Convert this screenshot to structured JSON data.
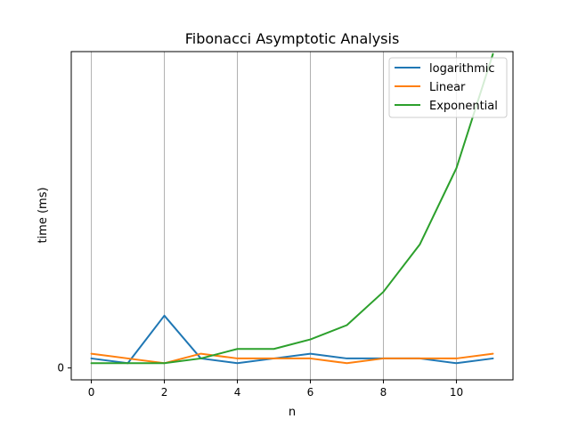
{
  "chart_data": {
    "type": "line",
    "title": "Fibonacci Asymptotic Analysis",
    "xlabel": "n",
    "ylabel": "time (ms)",
    "x": [
      0,
      1,
      2,
      3,
      4,
      5,
      6,
      7,
      8,
      9,
      10,
      11
    ],
    "xlim": [
      -0.55,
      11.55
    ],
    "ylim": [
      -0.0025,
      0.0665
    ],
    "x_ticks": [
      0,
      2,
      4,
      6,
      8,
      10
    ],
    "y_ticks": [
      0
    ],
    "x_tick_labels": [
      "0",
      "2",
      "4",
      "6",
      "8",
      "10"
    ],
    "y_tick_labels": [
      "0"
    ],
    "grid": "x-axis only",
    "legend_position": "top-right",
    "series": [
      {
        "name": "logarithmic",
        "color": "#1f77b4",
        "values": [
          0.002,
          0.001,
          0.011,
          0.002,
          0.001,
          0.002,
          0.003,
          0.002,
          0.002,
          0.002,
          0.001,
          0.002
        ]
      },
      {
        "name": "Linear",
        "color": "#ff7f0e",
        "values": [
          0.003,
          0.002,
          0.001,
          0.003,
          0.002,
          0.002,
          0.002,
          0.001,
          0.002,
          0.002,
          0.002,
          0.003
        ]
      },
      {
        "name": "Exponential",
        "color": "#2ca02c",
        "values": [
          0.001,
          0.001,
          0.001,
          0.002,
          0.004,
          0.004,
          0.006,
          0.009,
          0.016,
          0.026,
          0.042,
          0.066
        ]
      }
    ]
  }
}
